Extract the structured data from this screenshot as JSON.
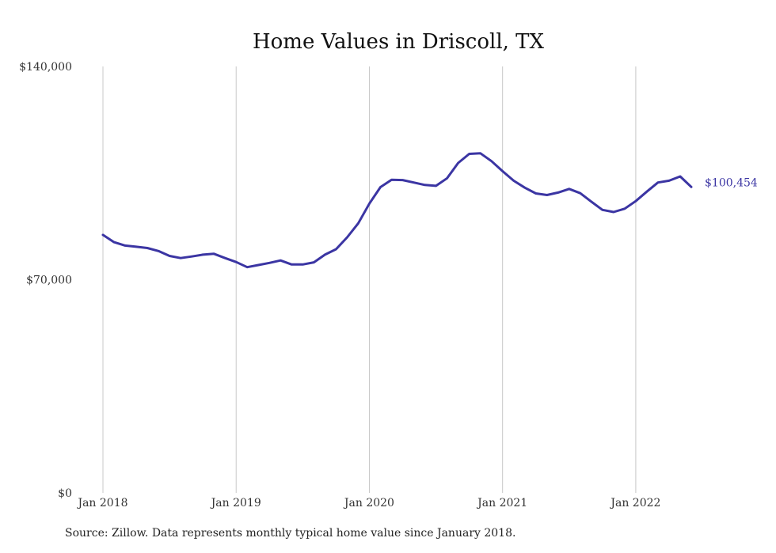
{
  "colors": {
    "line": "#3b35a3",
    "grid": "#c8c8c8",
    "text": "#333333"
  },
  "footer": {
    "source": "Source: Zillow. Data represents monthly typical home value since January 2018."
  },
  "chart_data": {
    "type": "line",
    "title": "Home Values in Driscoll, TX",
    "xlabel": "",
    "ylabel": "",
    "ylim": [
      0,
      140000
    ],
    "yticks": [
      0,
      70000,
      140000
    ],
    "ytick_labels": [
      "$0",
      "$70,000",
      "$140,000"
    ],
    "xticks": [
      "Jan 2018",
      "Jan 2019",
      "Jan 2020",
      "Jan 2021",
      "Jan 2022"
    ],
    "grid": "vertical",
    "end_label": "$100,454",
    "series": [
      {
        "values": [
          84700,
          82300,
          81200,
          80800,
          80400,
          79400,
          77800,
          77100,
          77600,
          78200,
          78500,
          77100,
          75800,
          74100,
          74800,
          75500,
          76300,
          75000,
          75000,
          75700,
          78200,
          80000,
          83900,
          88500,
          95000,
          100400,
          102800,
          102700,
          101900,
          101100,
          100800,
          103300,
          108300,
          111300,
          111500,
          108900,
          105600,
          102500,
          100200,
          98300,
          97800,
          98600,
          99800,
          98400,
          95600,
          92900,
          92200,
          93300,
          95800,
          98900,
          101900,
          102500,
          103900,
          100454
        ]
      }
    ]
  }
}
